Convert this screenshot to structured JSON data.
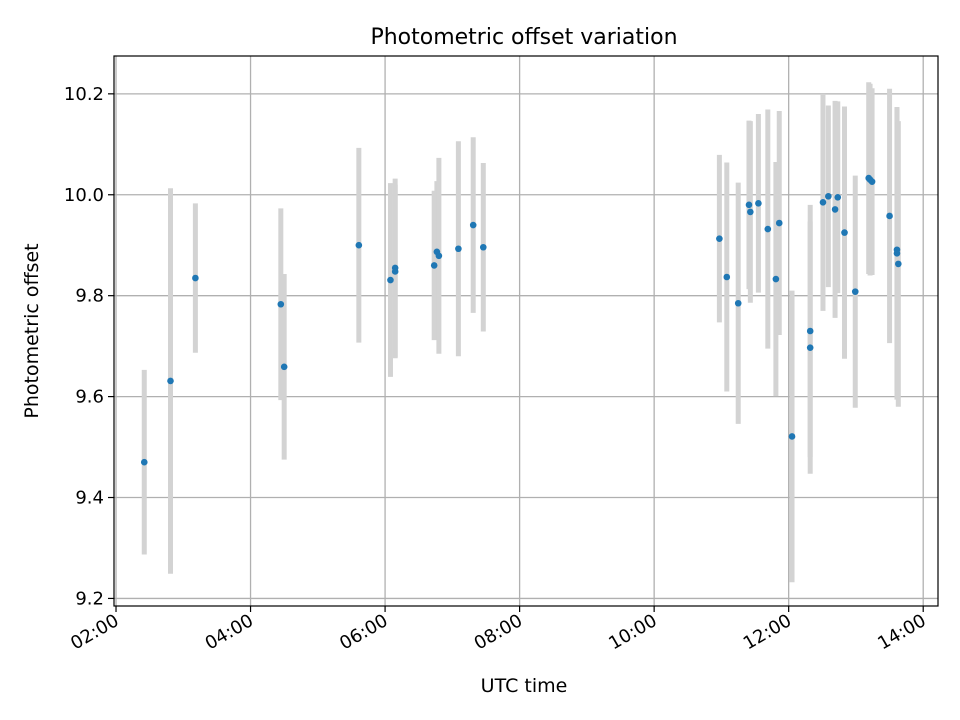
{
  "chart_data": {
    "type": "scatter",
    "title": "Photometric offset variation",
    "xlabel": "UTC time",
    "ylabel": "Photometric offset",
    "x_unit": "hours UTC",
    "xlim": [
      1.97,
      14.22
    ],
    "ylim": [
      9.185,
      10.275
    ],
    "x_ticks": [
      2,
      4,
      6,
      8,
      10,
      12,
      14
    ],
    "x_tick_labels": [
      "02:00",
      "04:00",
      "06:00",
      "08:00",
      "10:00",
      "12:00",
      "14:00"
    ],
    "y_ticks": [
      9.2,
      9.4,
      9.6,
      9.8,
      10.0,
      10.2
    ],
    "y_tick_labels": [
      "9.2",
      "9.4",
      "9.6",
      "9.8",
      "10.0",
      "10.2"
    ],
    "grid": true,
    "colors": {
      "point": "#1f77b4",
      "errorbar": "#d3d3d3",
      "grid": "#b0b0b0",
      "axes": "#000000"
    },
    "points": [
      {
        "x": 2.42,
        "y": 9.47,
        "err": 0.183
      },
      {
        "x": 2.81,
        "y": 9.631,
        "err": 0.382
      },
      {
        "x": 3.18,
        "y": 9.835,
        "err": 0.148
      },
      {
        "x": 4.45,
        "y": 9.783,
        "err": 0.19
      },
      {
        "x": 4.5,
        "y": 9.659,
        "err": 0.184
      },
      {
        "x": 5.61,
        "y": 9.9,
        "err": 0.193
      },
      {
        "x": 6.08,
        "y": 9.831,
        "err": 0.192
      },
      {
        "x": 6.15,
        "y": 9.855,
        "err": 0.177
      },
      {
        "x": 6.15,
        "y": 9.848,
        "err": 0.172
      },
      {
        "x": 6.73,
        "y": 9.86,
        "err": 0.148
      },
      {
        "x": 6.77,
        "y": 9.887,
        "err": 0.14
      },
      {
        "x": 6.8,
        "y": 9.879,
        "err": 0.194
      },
      {
        "x": 7.09,
        "y": 9.893,
        "err": 0.213
      },
      {
        "x": 7.31,
        "y": 9.94,
        "err": 0.174
      },
      {
        "x": 7.46,
        "y": 9.896,
        "err": 0.167
      },
      {
        "x": 10.97,
        "y": 9.913,
        "err": 0.166
      },
      {
        "x": 11.08,
        "y": 9.837,
        "err": 0.227
      },
      {
        "x": 11.25,
        "y": 9.785,
        "err": 0.239
      },
      {
        "x": 11.41,
        "y": 9.98,
        "err": 0.167
      },
      {
        "x": 11.43,
        "y": 9.966,
        "err": 0.18
      },
      {
        "x": 11.55,
        "y": 9.983,
        "err": 0.177
      },
      {
        "x": 11.69,
        "y": 9.932,
        "err": 0.237
      },
      {
        "x": 11.81,
        "y": 9.833,
        "err": 0.232
      },
      {
        "x": 11.86,
        "y": 9.944,
        "err": 0.222
      },
      {
        "x": 12.05,
        "y": 9.521,
        "err": 0.289
      },
      {
        "x": 12.32,
        "y": 9.73,
        "err": 0.25
      },
      {
        "x": 12.32,
        "y": 9.697,
        "err": 0.25
      },
      {
        "x": 12.51,
        "y": 9.985,
        "err": 0.215
      },
      {
        "x": 12.59,
        "y": 9.997,
        "err": 0.18
      },
      {
        "x": 12.69,
        "y": 9.971,
        "err": 0.215
      },
      {
        "x": 12.73,
        "y": 9.995,
        "err": 0.19
      },
      {
        "x": 12.83,
        "y": 9.925,
        "err": 0.25
      },
      {
        "x": 12.99,
        "y": 9.808,
        "err": 0.23
      },
      {
        "x": 13.19,
        "y": 10.033,
        "err": 0.19
      },
      {
        "x": 13.21,
        "y": 10.03,
        "err": 0.19
      },
      {
        "x": 13.24,
        "y": 10.026,
        "err": 0.185
      },
      {
        "x": 13.5,
        "y": 9.958,
        "err": 0.252
      },
      {
        "x": 13.61,
        "y": 9.891,
        "err": 0.28
      },
      {
        "x": 13.61,
        "y": 9.884,
        "err": 0.29
      },
      {
        "x": 13.63,
        "y": 9.863,
        "err": 0.283
      }
    ]
  }
}
